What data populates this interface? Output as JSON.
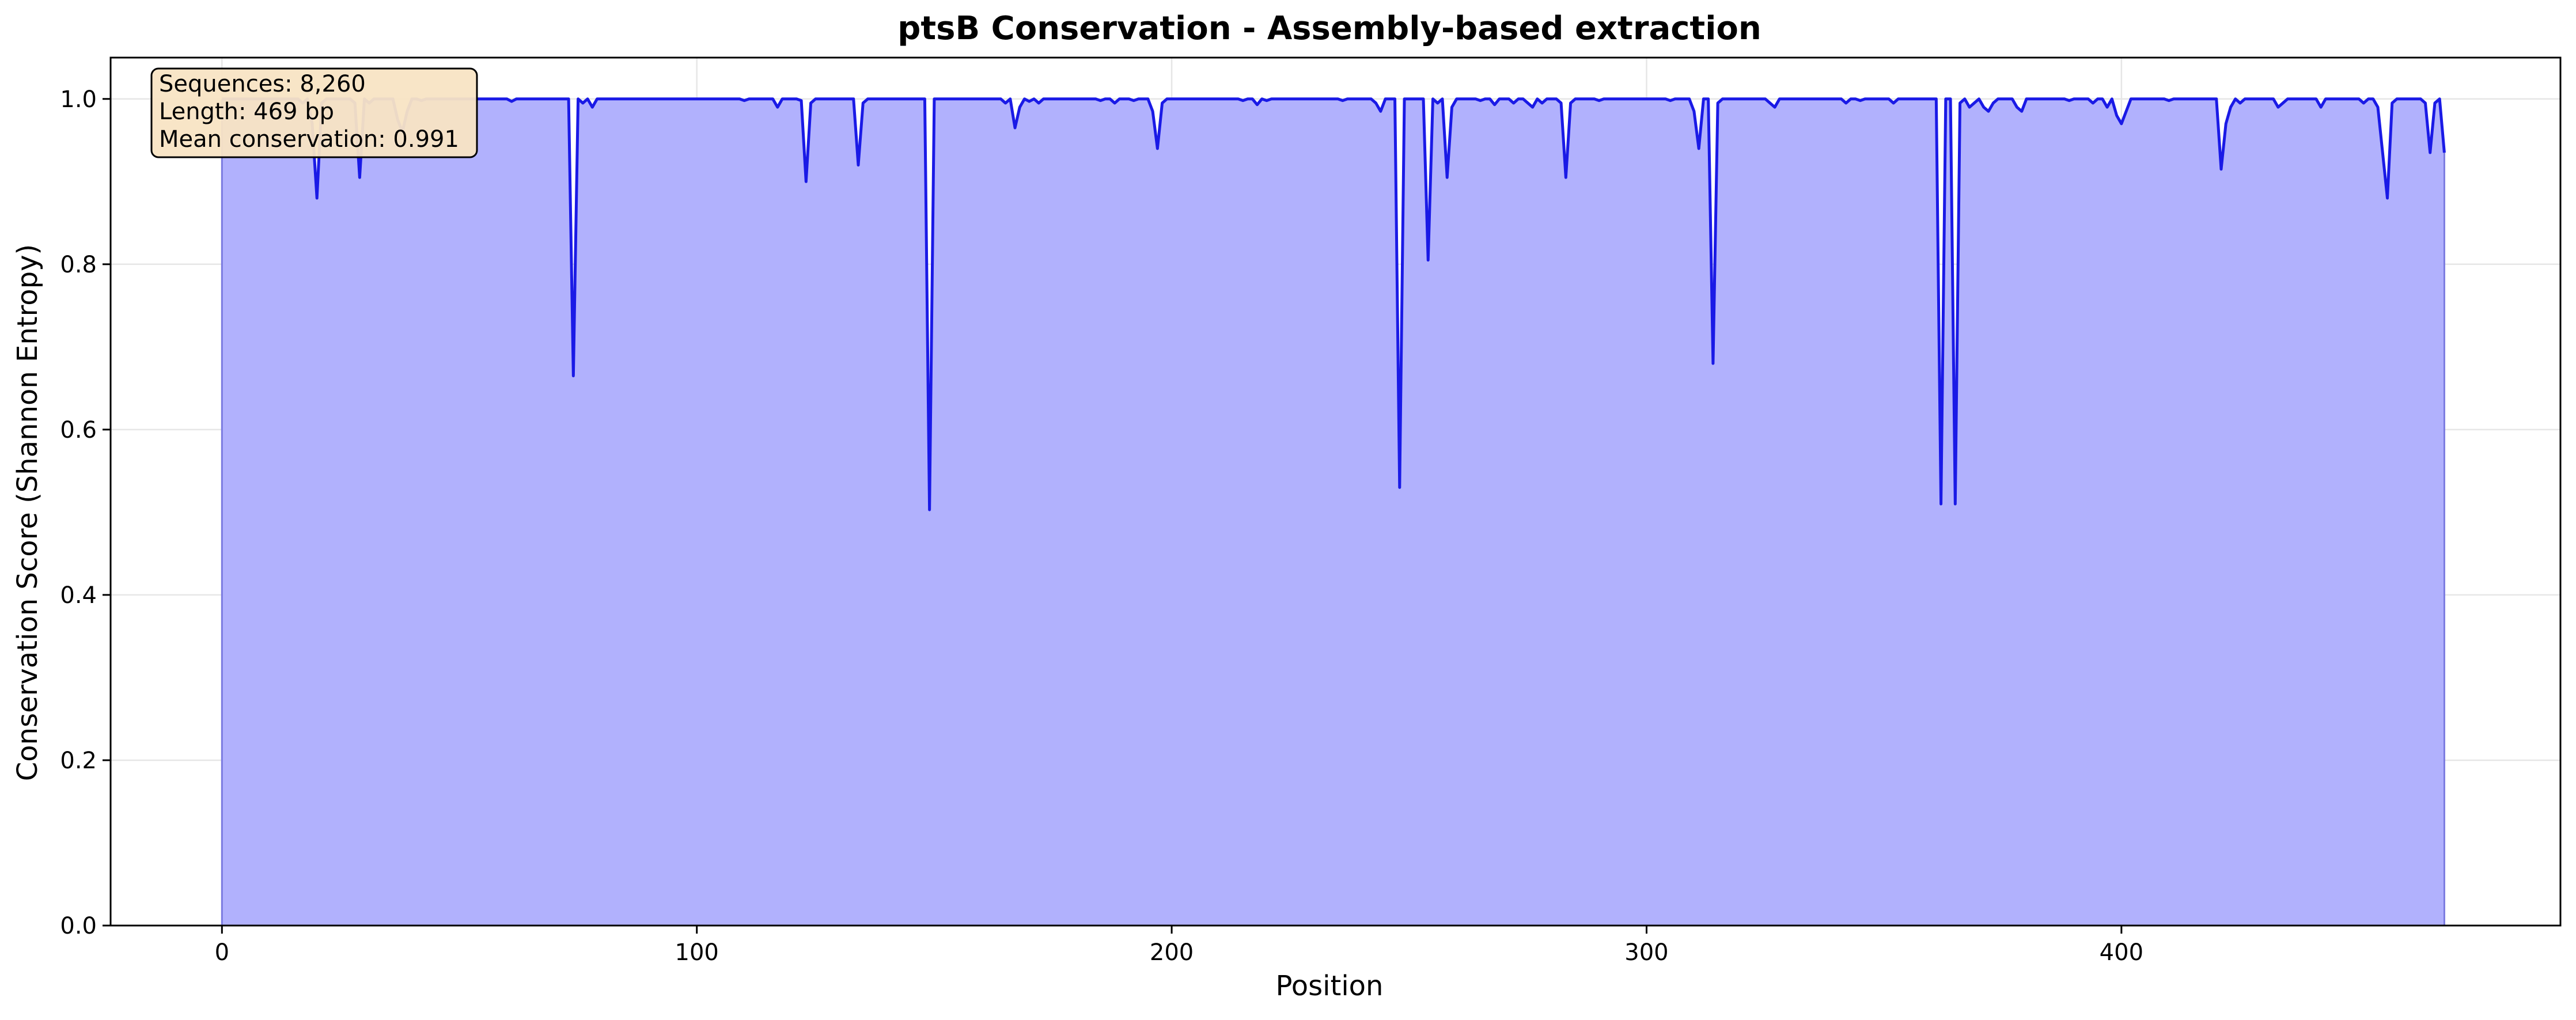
{
  "chart_data": {
    "type": "area",
    "title": "ptsB Conservation - Assembly-based extraction",
    "xlabel": "Position",
    "ylabel": "Conservation Score (Shannon Entropy)",
    "xlim": [
      -23.45,
      492.45
    ],
    "ylim": [
      0.0,
      1.05
    ],
    "xticks": [
      0,
      100,
      200,
      300,
      400
    ],
    "yticks": [
      0.0,
      0.2,
      0.4,
      0.6,
      0.8,
      1.0
    ],
    "xtick_labels": [
      "0",
      "100",
      "200",
      "300",
      "400"
    ],
    "ytick_labels": [
      "0.0",
      "0.2",
      "0.4",
      "0.6",
      "0.8",
      "1.0"
    ],
    "grid": true,
    "annotation_box": {
      "lines": [
        "Sequences: 8,260",
        "Length: 469 bp",
        "Mean conservation: 0.991"
      ],
      "placement": "top-left"
    },
    "colors": {
      "line": "#1a1ae6",
      "fill": "#b1b1fd",
      "annotation_bg": "#f8e4c4",
      "grid": "#e6e6e6"
    },
    "series": [
      {
        "length": 469,
        "baseline": 1.0,
        "dips": [
          [
            17,
            0.995
          ],
          [
            19,
            0.97
          ],
          [
            20,
            0.88
          ],
          [
            21,
            0.995
          ],
          [
            28,
            0.995
          ],
          [
            29,
            0.905
          ],
          [
            31,
            0.995
          ],
          [
            37,
            0.975
          ],
          [
            38,
            0.96
          ],
          [
            39,
            0.985
          ],
          [
            42,
            0.998
          ],
          [
            61,
            0.997
          ],
          [
            74,
            0.665
          ],
          [
            76,
            0.995
          ],
          [
            78,
            0.99
          ],
          [
            110,
            0.998
          ],
          [
            117,
            0.99
          ],
          [
            122,
            0.998
          ],
          [
            123,
            0.9
          ],
          [
            124,
            0.995
          ],
          [
            134,
            0.92
          ],
          [
            135,
            0.995
          ],
          [
            149,
            0.503
          ],
          [
            165,
            0.995
          ],
          [
            167,
            0.965
          ],
          [
            168,
            0.99
          ],
          [
            170,
            0.997
          ],
          [
            172,
            0.995
          ],
          [
            185,
            0.998
          ],
          [
            188,
            0.995
          ],
          [
            192,
            0.998
          ],
          [
            196,
            0.985
          ],
          [
            197,
            0.94
          ],
          [
            198,
            0.995
          ],
          [
            215,
            0.998
          ],
          [
            218,
            0.993
          ],
          [
            220,
            0.998
          ],
          [
            236,
            0.998
          ],
          [
            243,
            0.995
          ],
          [
            244,
            0.985
          ],
          [
            248,
            0.53
          ],
          [
            254,
            0.805
          ],
          [
            256,
            0.995
          ],
          [
            258,
            0.905
          ],
          [
            259,
            0.99
          ],
          [
            265,
            0.998
          ],
          [
            268,
            0.993
          ],
          [
            272,
            0.995
          ],
          [
            275,
            0.995
          ],
          [
            276,
            0.99
          ],
          [
            278,
            0.995
          ],
          [
            282,
            0.995
          ],
          [
            283,
            0.905
          ],
          [
            284,
            0.995
          ],
          [
            290,
            0.998
          ],
          [
            305,
            0.998
          ],
          [
            310,
            0.985
          ],
          [
            311,
            0.94
          ],
          [
            314,
            0.68
          ],
          [
            315,
            0.995
          ],
          [
            326,
            0.995
          ],
          [
            327,
            0.99
          ],
          [
            342,
            0.995
          ],
          [
            345,
            0.998
          ],
          [
            352,
            0.995
          ],
          [
            362,
            0.51
          ],
          [
            365,
            0.51
          ],
          [
            366,
            0.995
          ],
          [
            368,
            0.99
          ],
          [
            369,
            0.995
          ],
          [
            371,
            0.99
          ],
          [
            372,
            0.985
          ],
          [
            373,
            0.995
          ],
          [
            378,
            0.99
          ],
          [
            379,
            0.985
          ],
          [
            389,
            0.998
          ],
          [
            394,
            0.995
          ],
          [
            397,
            0.99
          ],
          [
            399,
            0.98
          ],
          [
            400,
            0.97
          ],
          [
            401,
            0.985
          ],
          [
            410,
            0.998
          ],
          [
            421,
            0.915
          ],
          [
            422,
            0.97
          ],
          [
            423,
            0.99
          ],
          [
            425,
            0.995
          ],
          [
            433,
            0.99
          ],
          [
            434,
            0.995
          ],
          [
            442,
            0.99
          ],
          [
            451,
            0.995
          ],
          [
            454,
            0.99
          ],
          [
            455,
            0.935
          ],
          [
            456,
            0.88
          ],
          [
            457,
            0.995
          ],
          [
            464,
            0.995
          ],
          [
            465,
            0.935
          ],
          [
            466,
            0.995
          ],
          [
            468,
            0.935
          ]
        ]
      }
    ]
  }
}
